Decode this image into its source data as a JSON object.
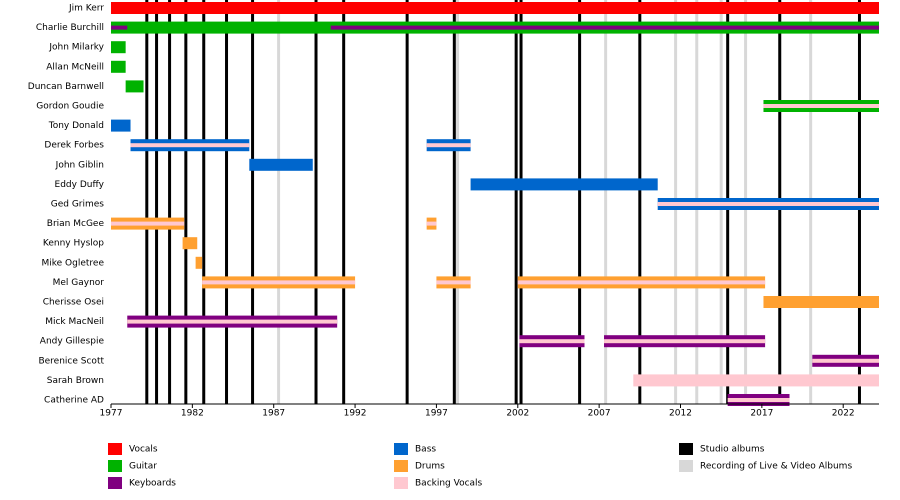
{
  "chart_data": {
    "type": "timeline",
    "xlim": [
      1977,
      2024.2
    ],
    "xticks": [
      1977,
      1982,
      1987,
      1992,
      1997,
      2002,
      2007,
      2012,
      2017,
      2022
    ],
    "roles": [
      {
        "name": "Vocals",
        "color": "#ff0000"
      },
      {
        "name": "Guitar",
        "color": "#00b200"
      },
      {
        "name": "Keyboards",
        "color": "#800080"
      },
      {
        "name": "Bass",
        "color": "#0066cc"
      },
      {
        "name": "Drums",
        "color": "#ffa030"
      },
      {
        "name": "Backing Vocals",
        "color": "#ffc8d0"
      }
    ],
    "events": [
      {
        "name": "Studio albums",
        "color": "#000000",
        "years": [
          1979.2,
          1979.8,
          1980.6,
          1981.6,
          1982.7,
          1984.1,
          1985.7,
          1989.6,
          1991.3,
          1995.2,
          1998.1,
          2001.9,
          2002.2,
          2005.8,
          2009.5,
          2014.9,
          2018.1,
          2023.0
        ]
      },
      {
        "name": "Recording of Live & Video Albums",
        "color": "#d8d8d8",
        "years": [
          1987.3,
          1998.3,
          2007.4,
          2011.7,
          2013.0,
          2014.5,
          2016.0,
          2020.0
        ]
      }
    ],
    "members": [
      {
        "name": "Jim Kerr",
        "periods": [
          {
            "start": 1977,
            "end": 2024.2,
            "role": "Vocals"
          }
        ]
      },
      {
        "name": "Charlie Burchill",
        "periods": [
          {
            "start": 1977,
            "end": 2024.2,
            "role": "Guitar"
          }
        ],
        "stripes": [
          {
            "start": 1977,
            "end": 1978.0,
            "role": "Keyboards"
          },
          {
            "start": 1990.5,
            "end": 2024.2,
            "role": "Keyboards"
          }
        ]
      },
      {
        "name": "John Milarky",
        "periods": [
          {
            "start": 1977,
            "end": 1977.9,
            "role": "Guitar"
          }
        ]
      },
      {
        "name": "Allan McNeill",
        "periods": [
          {
            "start": 1977,
            "end": 1977.9,
            "role": "Guitar"
          }
        ]
      },
      {
        "name": "Duncan Barnwell",
        "periods": [
          {
            "start": 1977.9,
            "end": 1979.0,
            "role": "Guitar"
          }
        ]
      },
      {
        "name": "Gordon Goudie",
        "periods": [
          {
            "start": 2017.1,
            "end": 2024.2,
            "role": "Guitar"
          }
        ],
        "stripes": [
          {
            "start": 2017.1,
            "end": 2024.2,
            "role": "Backing Vocals"
          }
        ]
      },
      {
        "name": "Tony Donald",
        "periods": [
          {
            "start": 1977,
            "end": 1978.2,
            "role": "Bass"
          }
        ]
      },
      {
        "name": "Derek Forbes",
        "periods": [
          {
            "start": 1978.2,
            "end": 1985.5,
            "role": "Bass"
          },
          {
            "start": 1996.4,
            "end": 1999.1,
            "role": "Bass"
          }
        ],
        "stripes": [
          {
            "start": 1978.2,
            "end": 1985.5,
            "role": "Backing Vocals"
          },
          {
            "start": 1996.4,
            "end": 1999.1,
            "role": "Backing Vocals"
          }
        ]
      },
      {
        "name": "John Giblin",
        "periods": [
          {
            "start": 1985.5,
            "end": 1989.4,
            "role": "Bass"
          }
        ]
      },
      {
        "name": "Eddy Duffy",
        "periods": [
          {
            "start": 1999.1,
            "end": 2010.6,
            "role": "Bass"
          }
        ]
      },
      {
        "name": "Ged Grimes",
        "periods": [
          {
            "start": 2010.6,
            "end": 2024.2,
            "role": "Bass"
          }
        ],
        "stripes": [
          {
            "start": 2010.6,
            "end": 2024.2,
            "role": "Backing Vocals"
          }
        ]
      },
      {
        "name": "Brian McGee",
        "periods": [
          {
            "start": 1977,
            "end": 1981.5,
            "role": "Drums"
          },
          {
            "start": 1996.4,
            "end": 1997.0,
            "role": "Drums"
          }
        ],
        "stripes": [
          {
            "start": 1977,
            "end": 1981.5,
            "role": "Backing Vocals"
          },
          {
            "start": 1996.4,
            "end": 1997.0,
            "role": "Backing Vocals"
          }
        ]
      },
      {
        "name": "Kenny Hyslop",
        "periods": [
          {
            "start": 1981.4,
            "end": 1982.3,
            "role": "Drums"
          }
        ]
      },
      {
        "name": "Mike Ogletree",
        "periods": [
          {
            "start": 1982.2,
            "end": 1982.6,
            "role": "Drums"
          }
        ]
      },
      {
        "name": "Mel Gaynor",
        "periods": [
          {
            "start": 1982.6,
            "end": 1992.0,
            "role": "Drums"
          },
          {
            "start": 1997.0,
            "end": 1999.1,
            "role": "Drums"
          },
          {
            "start": 2002.0,
            "end": 2017.2,
            "role": "Drums"
          }
        ],
        "stripes": [
          {
            "start": 1982.6,
            "end": 1992.0,
            "role": "Backing Vocals"
          },
          {
            "start": 1997.0,
            "end": 1999.1,
            "role": "Backing Vocals"
          },
          {
            "start": 2002.0,
            "end": 2017.2,
            "role": "Backing Vocals"
          }
        ]
      },
      {
        "name": "Cherisse Osei",
        "periods": [
          {
            "start": 2017.1,
            "end": 2024.2,
            "role": "Drums"
          }
        ]
      },
      {
        "name": "Mick MacNeil",
        "periods": [
          {
            "start": 1978.0,
            "end": 1990.9,
            "role": "Keyboards"
          }
        ],
        "stripes": [
          {
            "start": 1978.0,
            "end": 1990.9,
            "role": "Backing Vocals"
          }
        ]
      },
      {
        "name": "Andy Gillespie",
        "periods": [
          {
            "start": 2002.1,
            "end": 2006.1,
            "role": "Keyboards"
          },
          {
            "start": 2007.3,
            "end": 2017.2,
            "role": "Keyboards"
          }
        ],
        "stripes": [
          {
            "start": 2002.1,
            "end": 2006.1,
            "role": "Backing Vocals"
          },
          {
            "start": 2007.3,
            "end": 2017.2,
            "role": "Backing Vocals"
          }
        ]
      },
      {
        "name": "Berenice Scott",
        "periods": [
          {
            "start": 2020.1,
            "end": 2024.2,
            "role": "Keyboards"
          }
        ],
        "stripes": [
          {
            "start": 2020.1,
            "end": 2024.2,
            "role": "Backing Vocals"
          }
        ]
      },
      {
        "name": "Sarah Brown",
        "periods": [
          {
            "start": 2009.1,
            "end": 2024.2,
            "role": "Backing Vocals"
          }
        ]
      },
      {
        "name": "Catherine AD",
        "periods": [
          {
            "start": 2014.9,
            "end": 2018.7,
            "role": "Keyboards"
          }
        ],
        "stripes": [
          {
            "start": 2014.9,
            "end": 2018.7,
            "role": "Backing Vocals"
          }
        ]
      }
    ]
  }
}
